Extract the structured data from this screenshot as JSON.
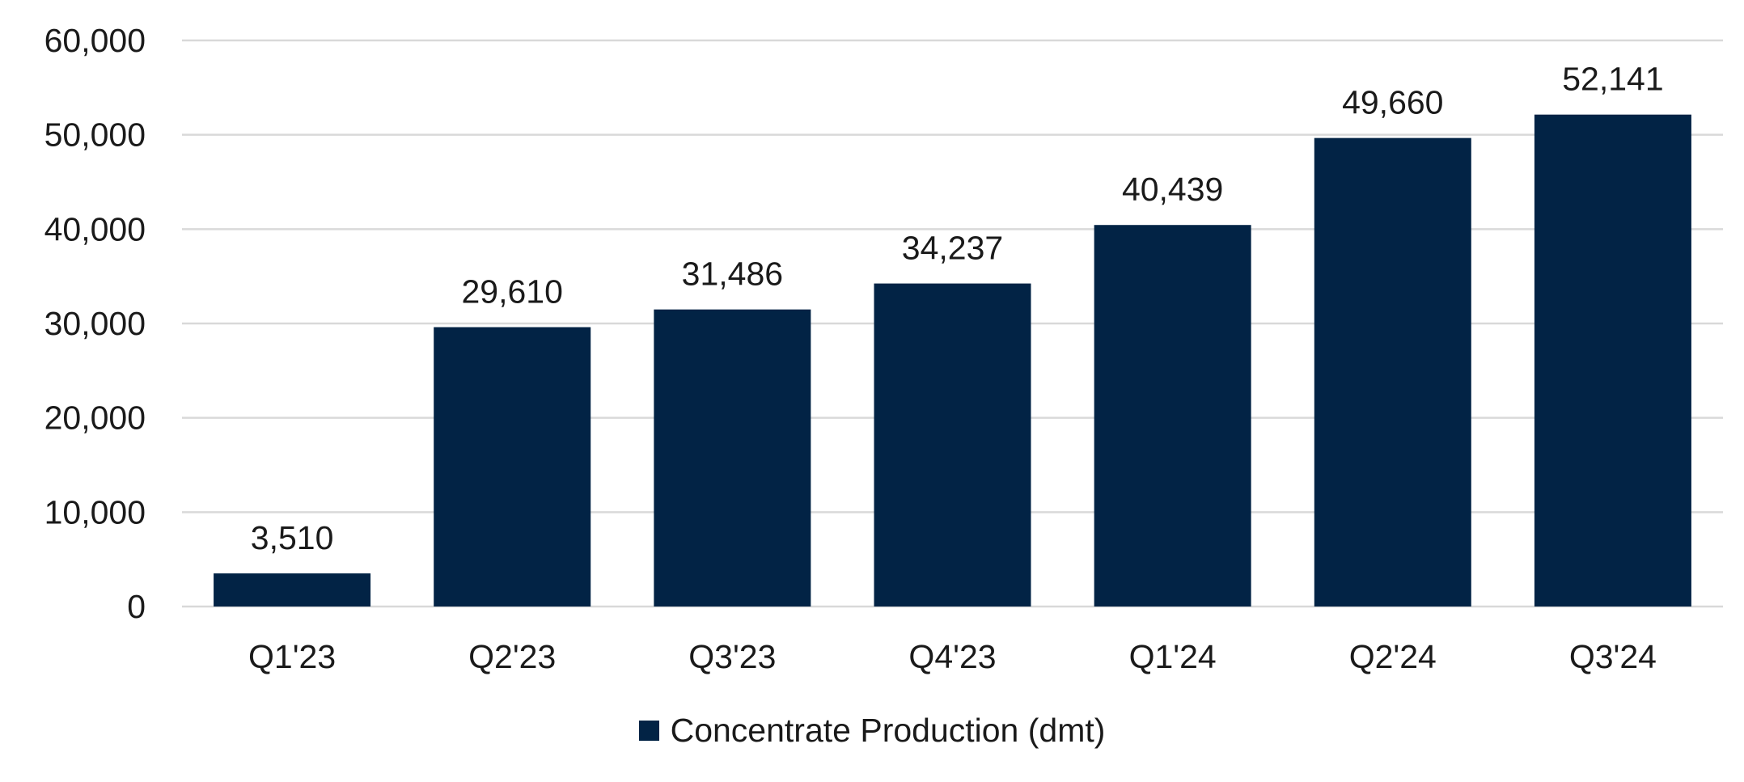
{
  "chart_data": {
    "type": "bar",
    "categories": [
      "Q1'23",
      "Q2'23",
      "Q3'23",
      "Q4'23",
      "Q1'24",
      "Q2'24",
      "Q3'24"
    ],
    "series": [
      {
        "name": "Concentrate Production (dmt)",
        "values": [
          3510,
          29610,
          31486,
          34237,
          40439,
          49660,
          52141
        ],
        "color": "#022345"
      }
    ],
    "data_labels": [
      "3,510",
      "29,610",
      "31,486",
      "34,237",
      "40,439",
      "49,660",
      "52,141"
    ],
    "y_ticks": [
      0,
      10000,
      20000,
      30000,
      40000,
      50000,
      60000
    ],
    "y_tick_labels": [
      "0",
      "10,000",
      "20,000",
      "30,000",
      "40,000",
      "50,000",
      "60,000"
    ],
    "ylim": [
      0,
      60000
    ],
    "grid": true,
    "legend_position": "bottom",
    "title": "",
    "xlabel": "",
    "ylabel": ""
  },
  "legend": {
    "label": "Concentrate Production (dmt)",
    "color": "#022345"
  }
}
